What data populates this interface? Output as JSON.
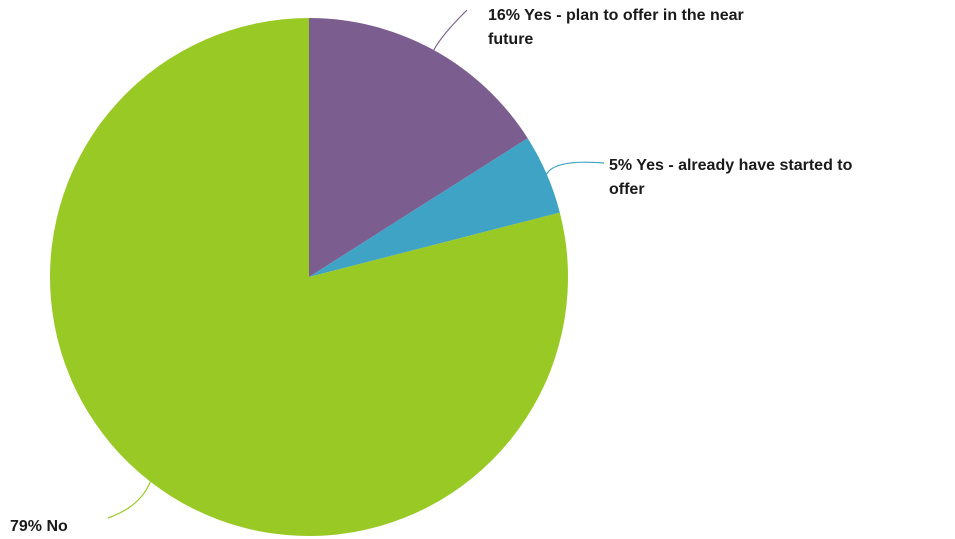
{
  "chart_data": {
    "type": "pie",
    "start_angle_deg": 0,
    "direction": "clockwise",
    "slices": [
      {
        "label": "Yes - plan to offer in the near future",
        "percent_label": "16%",
        "value": 16,
        "color": "#7b5e8f"
      },
      {
        "label": "Yes - already have started to offer",
        "percent_label": "5%",
        "value": 5,
        "color": "#3ea3c4"
      },
      {
        "label": "No",
        "percent_label": "79%",
        "value": 79,
        "color": "#99c925"
      }
    ],
    "data_labels": [
      "16% Yes - plan to offer in the near\nfuture",
      "5% Yes - already have started to\noffer",
      "79% No"
    ]
  }
}
